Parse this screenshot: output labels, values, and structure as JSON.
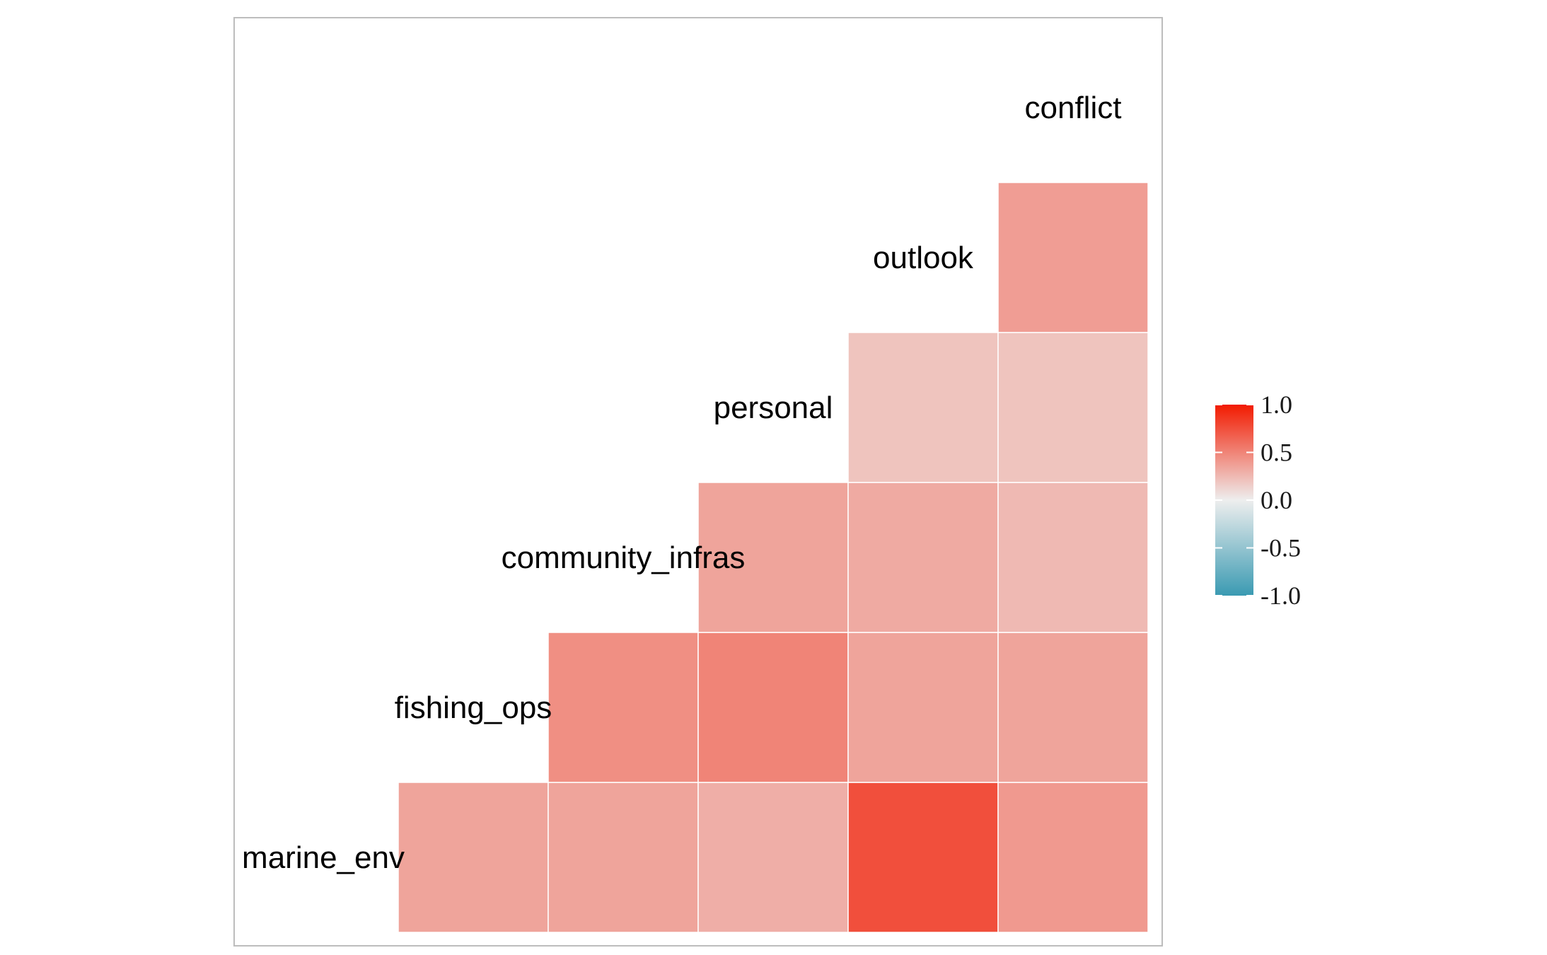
{
  "chart_data": {
    "type": "heatmap",
    "layout": "upper-triangle correlation matrix",
    "variables": [
      "marine_env",
      "fishing_ops",
      "community_infras",
      "personal",
      "outlook",
      "conflict"
    ],
    "cells": [
      {
        "row": "fishing_ops",
        "col": "marine_env",
        "value": 0.35
      },
      {
        "row": "community_infras",
        "col": "marine_env",
        "value": 0.35
      },
      {
        "row": "community_infras",
        "col": "fishing_ops",
        "value": 0.45
      },
      {
        "row": "personal",
        "col": "marine_env",
        "value": 0.3
      },
      {
        "row": "personal",
        "col": "fishing_ops",
        "value": 0.5
      },
      {
        "row": "personal",
        "col": "community_infras",
        "value": 0.35
      },
      {
        "row": "outlook",
        "col": "marine_env",
        "value": 0.75
      },
      {
        "row": "outlook",
        "col": "fishing_ops",
        "value": 0.35
      },
      {
        "row": "outlook",
        "col": "community_infras",
        "value": 0.32
      },
      {
        "row": "outlook",
        "col": "personal",
        "value": 0.2
      },
      {
        "row": "conflict",
        "col": "marine_env",
        "value": 0.4
      },
      {
        "row": "conflict",
        "col": "fishing_ops",
        "value": 0.35
      },
      {
        "row": "conflict",
        "col": "community_infras",
        "value": 0.25
      },
      {
        "row": "conflict",
        "col": "personal",
        "value": 0.2
      },
      {
        "row": "conflict",
        "col": "outlook",
        "value": 0.38
      }
    ],
    "color_scale": {
      "low": "#3a9ab2",
      "mid": "#eeeeee",
      "high": "#f21a00",
      "limits": [
        -1.0,
        1.0
      ],
      "ticks": [
        "1.0",
        "0.5",
        "0.0",
        "-0.5",
        "-1.0"
      ]
    },
    "legend_position": "right",
    "grid": false
  }
}
